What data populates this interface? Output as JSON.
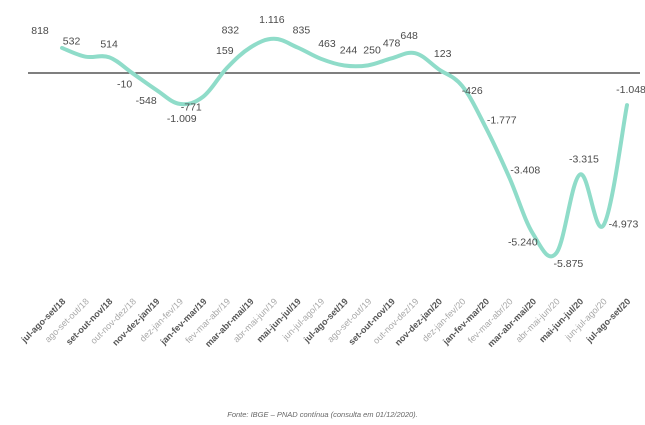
{
  "chart_data": {
    "type": "line",
    "title": "",
    "xlabel": "",
    "ylabel": "",
    "categories": [
      "jul-ago-set/18",
      "ago-set-out/18",
      "set-out-nov/18",
      "out-nov-dez/18",
      "nov-dez-jan/19",
      "dez-jan-fev/19",
      "jan-fev-mar/19",
      "fev-mar-abr/19",
      "mar-abr-mai/19",
      "abr-mai-jun/19",
      "mai-jun-jul/19",
      "jun-jul-ago/19",
      "jul-ago-set/19",
      "ago-set-out/19",
      "set-out-nov/19",
      "out-nov-dez/19",
      "nov-dez-jan/20",
      "dez-jan-fev/20",
      "jan-fev-mar/20",
      "fev-mar-abr/20",
      "mar-abr-mai/20",
      "abr-mai-jun/20",
      "mai-jun-jul/20",
      "jun-jul-ago/20",
      "jul-ago-set/20"
    ],
    "tick_emphasis": [
      "bold",
      "light",
      "bold",
      "light",
      "bold",
      "light",
      "bold",
      "light",
      "bold",
      "light",
      "bold",
      "light",
      "bold",
      "light",
      "bold",
      "light",
      "bold",
      "light",
      "bold",
      "light",
      "bold",
      "light",
      "bold",
      "light",
      "bold"
    ],
    "values": [
      818,
      532,
      514,
      -10,
      -548,
      -1009,
      -771,
      159,
      832,
      1116,
      835,
      463,
      244,
      250,
      478,
      648,
      123,
      -426,
      -1777,
      -3408,
      -5240,
      -5875,
      -3315,
      -4973,
      -1048
    ],
    "data_labels": [
      "818",
      "532",
      "514",
      "-10",
      "-548",
      "-1.009",
      "-771",
      "159",
      "832",
      "1.116",
      "835",
      "463",
      "244",
      "250",
      "478",
      "648",
      "123",
      "-426",
      "-1.777",
      "-3.408",
      "-5.240",
      "-5.875",
      "-3.315",
      "-4.973",
      "-1.048"
    ],
    "ylim": [
      -6200,
      1600
    ],
    "grid": false,
    "legend": "none",
    "series_color": "#8fdcc9",
    "zero_line_color": "#333333"
  },
  "source_note": "Fonte: IBGE – PNAD contínua (consulta em 01/12/2020)."
}
